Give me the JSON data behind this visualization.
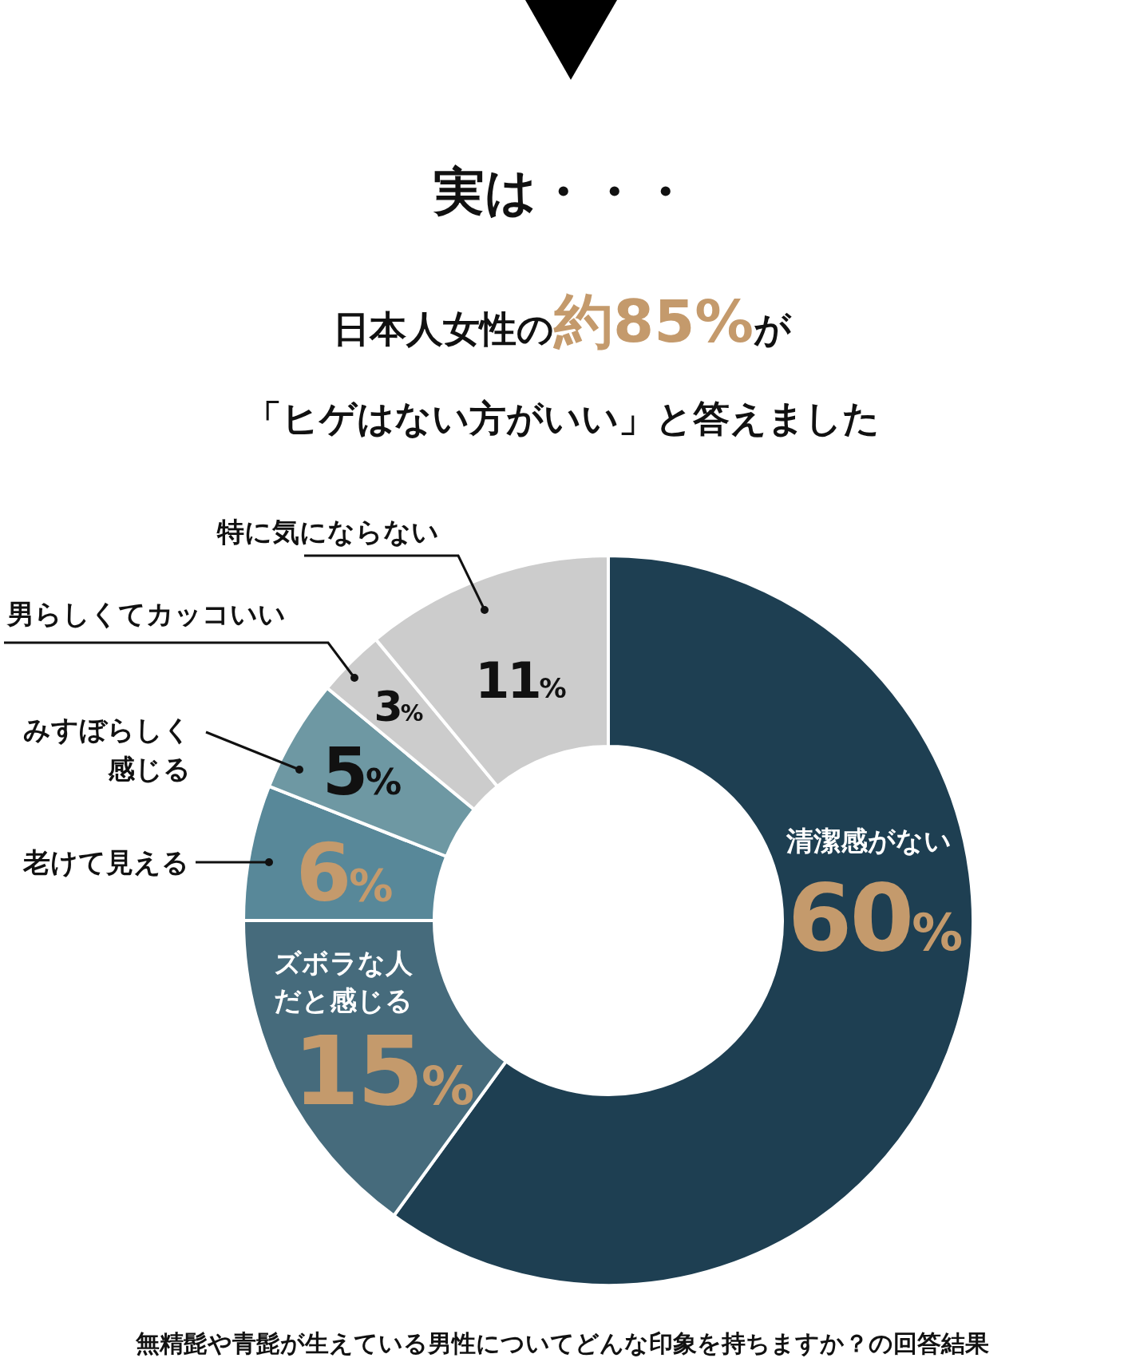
{
  "chart_data": {
    "type": "donut",
    "title": "実は・・・",
    "subtitle": "日本人女性の**約85%**が",
    "annotations": [
      "「ヒゲはない方がいい」と答えました",
      "無精髭や青髭が生えている男性についてどんな印象を持ちますか？の回答結果"
    ],
    "categories": [
      "清潔感がない",
      "ズボラな人だと感じる",
      "老けて見える",
      "みすぼらしく感じる",
      "男らしくてカッコいい",
      "特に気にならない"
    ],
    "values": [
      60,
      15,
      6,
      5,
      3,
      11
    ],
    "colors": [
      "#1e3f52",
      "#466b7c",
      "#588899",
      "#6e98a3",
      "#cccccc",
      "#cccccc"
    ],
    "value_labels": [
      "60%",
      "15%",
      "6%",
      "5%",
      "3%",
      "11%"
    ]
  }
}
